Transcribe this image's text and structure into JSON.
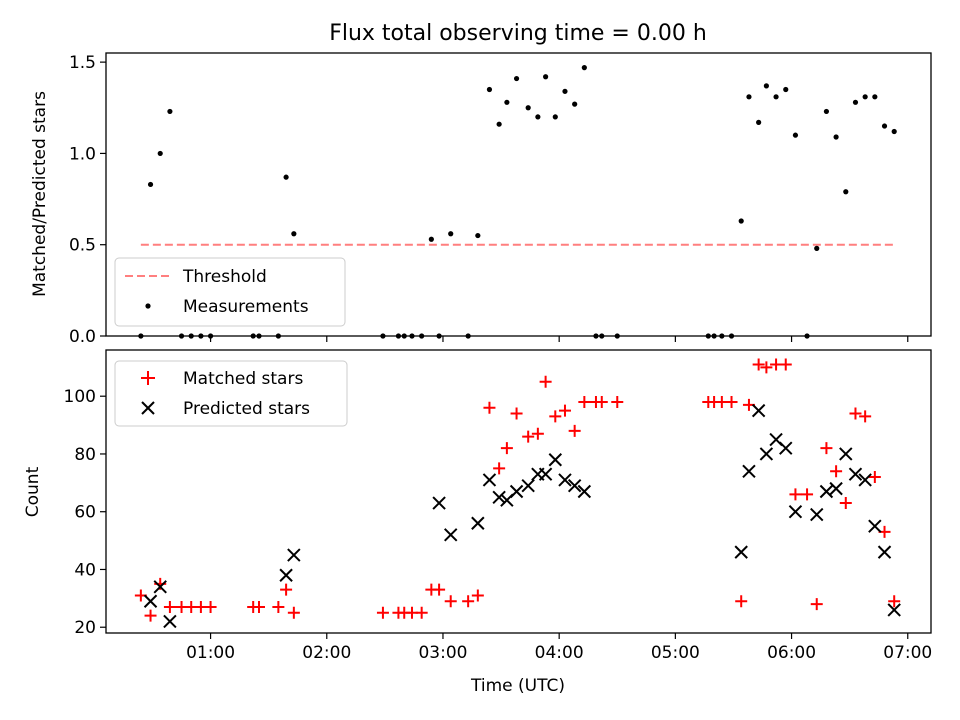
{
  "chart_data": [
    {
      "type": "scatter",
      "title": "Flux total observing time = 0.00 h",
      "ylabel": "Matched/Predicted stars",
      "xlabel": "",
      "xlim": [
        "00:06",
        "07:12"
      ],
      "ylim": [
        0,
        1.55
      ],
      "yticks": [
        "0.0",
        "0.5",
        "1.0",
        "1.5"
      ],
      "grid": false,
      "legend_position": "lower-left",
      "threshold": {
        "name": "Threshold",
        "value": 0.5,
        "x_range": [
          "00:24",
          "06:54"
        ],
        "color": "#ff7f7f",
        "style": "dashed"
      },
      "series": [
        {
          "name": "Measurements",
          "color": "#000000",
          "marker": "dot",
          "points": [
            [
              "00:24",
              0
            ],
            [
              "00:29",
              0.83
            ],
            [
              "00:34",
              1.0
            ],
            [
              "00:39",
              1.23
            ],
            [
              "00:45",
              0
            ],
            [
              "00:50",
              0
            ],
            [
              "00:55",
              0
            ],
            [
              "01:00",
              0
            ],
            [
              "01:22",
              0
            ],
            [
              "01:25",
              0
            ],
            [
              "01:35",
              0
            ],
            [
              "01:39",
              0.87
            ],
            [
              "01:43",
              0.56
            ],
            [
              "02:29",
              0
            ],
            [
              "02:37",
              0
            ],
            [
              "02:40",
              0
            ],
            [
              "02:44",
              0
            ],
            [
              "02:49",
              0
            ],
            [
              "02:54",
              0.53
            ],
            [
              "02:58",
              0
            ],
            [
              "03:04",
              0.56
            ],
            [
              "03:13",
              0
            ],
            [
              "03:18",
              0.55
            ],
            [
              "03:24",
              1.35
            ],
            [
              "03:29",
              1.16
            ],
            [
              "03:33",
              1.28
            ],
            [
              "03:38",
              1.41
            ],
            [
              "03:44",
              1.25
            ],
            [
              "03:49",
              1.2
            ],
            [
              "03:53",
              1.42
            ],
            [
              "03:58",
              1.2
            ],
            [
              "04:03",
              1.34
            ],
            [
              "04:08",
              1.27
            ],
            [
              "04:13",
              1.47
            ],
            [
              "04:19",
              0
            ],
            [
              "04:22",
              0
            ],
            [
              "04:30",
              0
            ],
            [
              "05:17",
              0
            ],
            [
              "05:20",
              0
            ],
            [
              "05:24",
              0
            ],
            [
              "05:29",
              0
            ],
            [
              "05:34",
              0.63
            ],
            [
              "05:38",
              1.31
            ],
            [
              "05:43",
              1.17
            ],
            [
              "05:47",
              1.37
            ],
            [
              "05:52",
              1.31
            ],
            [
              "05:57",
              1.35
            ],
            [
              "06:02",
              1.1
            ],
            [
              "06:08",
              0
            ],
            [
              "06:13",
              0.48
            ],
            [
              "06:18",
              1.23
            ],
            [
              "06:23",
              1.09
            ],
            [
              "06:28",
              0.79
            ],
            [
              "06:33",
              1.28
            ],
            [
              "06:38",
              1.31
            ],
            [
              "06:43",
              1.31
            ],
            [
              "06:48",
              1.15
            ],
            [
              "06:53",
              1.12
            ]
          ]
        }
      ]
    },
    {
      "type": "scatter",
      "title": "",
      "xlabel": "Time (UTC)",
      "ylabel": "Count",
      "xlim": [
        "00:06",
        "07:12"
      ],
      "ylim": [
        18,
        116
      ],
      "yticks": [
        "20",
        "40",
        "60",
        "80",
        "100"
      ],
      "xticks": [
        "01:00",
        "02:00",
        "03:00",
        "04:00",
        "05:00",
        "06:00",
        "07:00"
      ],
      "grid": false,
      "legend_position": "upper-left",
      "series": [
        {
          "name": "Matched stars",
          "color": "#ff0000",
          "marker": "plus",
          "points": [
            [
              "00:24",
              31
            ],
            [
              "00:29",
              24
            ],
            [
              "00:34",
              35
            ],
            [
              "00:39",
              27
            ],
            [
              "00:45",
              27
            ],
            [
              "00:50",
              27
            ],
            [
              "00:55",
              27
            ],
            [
              "01:00",
              27
            ],
            [
              "01:22",
              27
            ],
            [
              "01:25",
              27
            ],
            [
              "01:35",
              27
            ],
            [
              "01:39",
              33
            ],
            [
              "01:43",
              25
            ],
            [
              "02:29",
              25
            ],
            [
              "02:37",
              25
            ],
            [
              "02:40",
              25
            ],
            [
              "02:44",
              25
            ],
            [
              "02:49",
              25
            ],
            [
              "02:54",
              33
            ],
            [
              "02:58",
              33
            ],
            [
              "03:04",
              29
            ],
            [
              "03:13",
              29
            ],
            [
              "03:18",
              31
            ],
            [
              "03:24",
              96
            ],
            [
              "03:29",
              75
            ],
            [
              "03:33",
              82
            ],
            [
              "03:38",
              94
            ],
            [
              "03:44",
              86
            ],
            [
              "03:49",
              87
            ],
            [
              "03:53",
              105
            ],
            [
              "03:58",
              93
            ],
            [
              "04:03",
              95
            ],
            [
              "04:08",
              88
            ],
            [
              "04:13",
              98
            ],
            [
              "04:19",
              98
            ],
            [
              "04:22",
              98
            ],
            [
              "04:30",
              98
            ],
            [
              "05:17",
              98
            ],
            [
              "05:20",
              98
            ],
            [
              "05:24",
              98
            ],
            [
              "05:29",
              98
            ],
            [
              "05:34",
              29
            ],
            [
              "05:38",
              97
            ],
            [
              "05:43",
              111
            ],
            [
              "05:47",
              110
            ],
            [
              "05:52",
              111
            ],
            [
              "05:57",
              111
            ],
            [
              "06:02",
              66
            ],
            [
              "06:08",
              66
            ],
            [
              "06:13",
              28
            ],
            [
              "06:18",
              82
            ],
            [
              "06:23",
              74
            ],
            [
              "06:28",
              63
            ],
            [
              "06:33",
              94
            ],
            [
              "06:38",
              93
            ],
            [
              "06:43",
              72
            ],
            [
              "06:48",
              53
            ],
            [
              "06:53",
              29
            ]
          ]
        },
        {
          "name": "Predicted stars",
          "color": "#000000",
          "marker": "x",
          "points": [
            [
              "00:29",
              29
            ],
            [
              "00:34",
              34
            ],
            [
              "00:39",
              22
            ],
            [
              "01:39",
              38
            ],
            [
              "01:43",
              45
            ],
            [
              "02:58",
              63
            ],
            [
              "03:04",
              52
            ],
            [
              "03:18",
              56
            ],
            [
              "03:24",
              71
            ],
            [
              "03:29",
              65
            ],
            [
              "03:33",
              64
            ],
            [
              "03:38",
              67
            ],
            [
              "03:44",
              69
            ],
            [
              "03:49",
              73
            ],
            [
              "03:53",
              73
            ],
            [
              "03:58",
              78
            ],
            [
              "04:03",
              71
            ],
            [
              "04:08",
              69
            ],
            [
              "04:13",
              67
            ],
            [
              "05:34",
              46
            ],
            [
              "05:38",
              74
            ],
            [
              "05:43",
              95
            ],
            [
              "05:47",
              80
            ],
            [
              "05:52",
              85
            ],
            [
              "05:57",
              82
            ],
            [
              "06:02",
              60
            ],
            [
              "06:13",
              59
            ],
            [
              "06:18",
              67
            ],
            [
              "06:23",
              68
            ],
            [
              "06:28",
              80
            ],
            [
              "06:33",
              73
            ],
            [
              "06:38",
              71
            ],
            [
              "06:43",
              55
            ],
            [
              "06:48",
              46
            ],
            [
              "06:53",
              26
            ]
          ]
        }
      ]
    }
  ]
}
